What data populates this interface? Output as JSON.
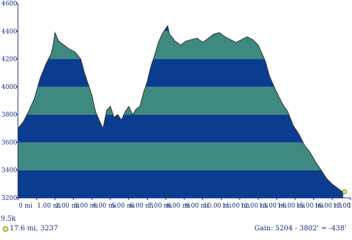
{
  "chart_data": {
    "type": "area",
    "title": "",
    "xlabel": "",
    "ylabel": "",
    "x_unit": "mi",
    "xlim": [
      0,
      18
    ],
    "ylim": [
      3200,
      4600
    ],
    "x_ticks": [
      "0 mi",
      "1.00 mi",
      "2.00 mi",
      "3.00 mi",
      "4.00 mi",
      "5.00 mi",
      "6.00 mi",
      "7.00 mi",
      "8.00 mi",
      "9.00 mi",
      "10.00 mi",
      "11.00 mi",
      "12.00 mi",
      "13.00 mi",
      "14.00 mi",
      "15.00 mi",
      "16.00 mi",
      "17.00 mi",
      "18"
    ],
    "y_ticks": [
      3200,
      3400,
      3600,
      3800,
      4000,
      4200,
      4400,
      4600
    ],
    "band_colors": [
      "#0a3d8f",
      "#3f8a80"
    ],
    "grid": false,
    "series": [
      {
        "x": [
          0,
          0.3,
          0.6,
          0.9,
          1.2,
          1.5,
          1.8,
          1.9,
          2.0,
          2.2,
          2.5,
          2.8,
          3.1,
          3.4,
          3.6,
          3.8,
          4.0,
          4.2,
          4.4,
          4.6,
          4.8,
          5.0,
          5.2,
          5.4,
          5.6,
          5.8,
          6.0,
          6.2,
          6.4,
          6.6,
          6.8,
          7.0,
          7.2,
          7.4,
          7.6,
          7.8,
          8.0,
          8.1,
          8.2,
          8.5,
          8.8,
          9.1,
          9.4,
          9.7,
          10.0,
          10.3,
          10.6,
          10.9,
          11.2,
          11.5,
          11.8,
          12.1,
          12.4,
          12.7,
          13.0,
          13.2,
          13.4,
          13.6,
          13.8,
          14.0,
          14.3,
          14.6,
          14.9,
          15.2,
          15.5,
          15.8,
          16.1,
          16.4,
          16.7,
          17.0,
          17.3,
          17.6
        ],
        "y": [
          3700,
          3750,
          3830,
          3920,
          4060,
          4160,
          4240,
          4300,
          4390,
          4330,
          4300,
          4270,
          4250,
          4200,
          4100,
          4020,
          3940,
          3820,
          3760,
          3700,
          3830,
          3860,
          3780,
          3800,
          3760,
          3820,
          3860,
          3800,
          3840,
          3860,
          3960,
          4040,
          4150,
          4230,
          4320,
          4380,
          4420,
          4440,
          4380,
          4330,
          4300,
          4330,
          4340,
          4350,
          4320,
          4350,
          4380,
          4390,
          4360,
          4340,
          4320,
          4340,
          4360,
          4340,
          4300,
          4240,
          4180,
          4080,
          4020,
          3960,
          3880,
          3820,
          3720,
          3660,
          3580,
          3530,
          3460,
          3400,
          3340,
          3300,
          3270,
          3240
        ]
      }
    ]
  },
  "footer": {
    "left": "17.6 mi, 3237",
    "right": "Gain: 5204 - 3802' = -438'"
  },
  "unit_label": "9.5k"
}
